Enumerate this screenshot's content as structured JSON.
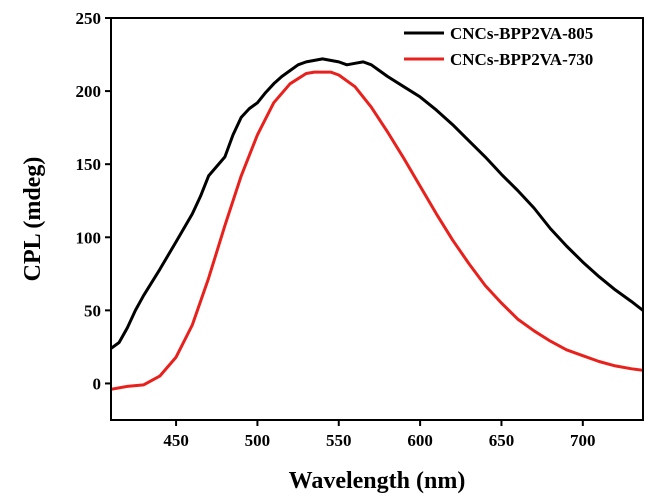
{
  "chart_data": {
    "type": "line",
    "title": "",
    "xlabel": "Wavelength (nm)",
    "ylabel": "CPL (mdeg)",
    "xlim": [
      410,
      737
    ],
    "ylim": [
      -25,
      250
    ],
    "xticks": [
      450,
      500,
      550,
      600,
      650,
      700
    ],
    "yticks": [
      0,
      50,
      100,
      150,
      200,
      250
    ],
    "grid": false,
    "legend_position": "top-right",
    "series": [
      {
        "name": "CNCs-BPP2VA-805",
        "color": "#000000",
        "x": [
          410,
          415,
          420,
          425,
          430,
          440,
          450,
          460,
          465,
          470,
          480,
          485,
          490,
          495,
          500,
          505,
          510,
          515,
          520,
          525,
          530,
          535,
          540,
          545,
          550,
          555,
          560,
          565,
          570,
          575,
          580,
          590,
          600,
          610,
          620,
          630,
          640,
          650,
          660,
          670,
          680,
          690,
          700,
          710,
          720,
          730,
          737
        ],
        "y": [
          24,
          28,
          38,
          50,
          60,
          78,
          97,
          116,
          128,
          142,
          155,
          170,
          182,
          188,
          192,
          199,
          205,
          210,
          214,
          218,
          220,
          221,
          222,
          221,
          220,
          218,
          219,
          220,
          218,
          214,
          210,
          203,
          196,
          187,
          177,
          166,
          155,
          143,
          132,
          120,
          106,
          94,
          83,
          73,
          64,
          56,
          50
        ]
      },
      {
        "name": "CNCs-BPP2VA-730",
        "color": "#e8211c",
        "x": [
          410,
          420,
          430,
          440,
          450,
          460,
          470,
          480,
          490,
          500,
          510,
          520,
          530,
          535,
          540,
          545,
          550,
          560,
          570,
          580,
          590,
          600,
          610,
          620,
          630,
          640,
          650,
          660,
          670,
          680,
          690,
          700,
          710,
          720,
          730,
          737
        ],
        "y": [
          -4,
          -2,
          -1,
          5,
          18,
          40,
          72,
          108,
          142,
          170,
          192,
          205,
          212,
          213,
          213,
          213,
          211,
          203,
          189,
          172,
          154,
          135,
          116,
          98,
          82,
          67,
          55,
          44,
          36,
          29,
          23,
          19,
          15,
          12,
          10,
          9
        ]
      }
    ]
  }
}
